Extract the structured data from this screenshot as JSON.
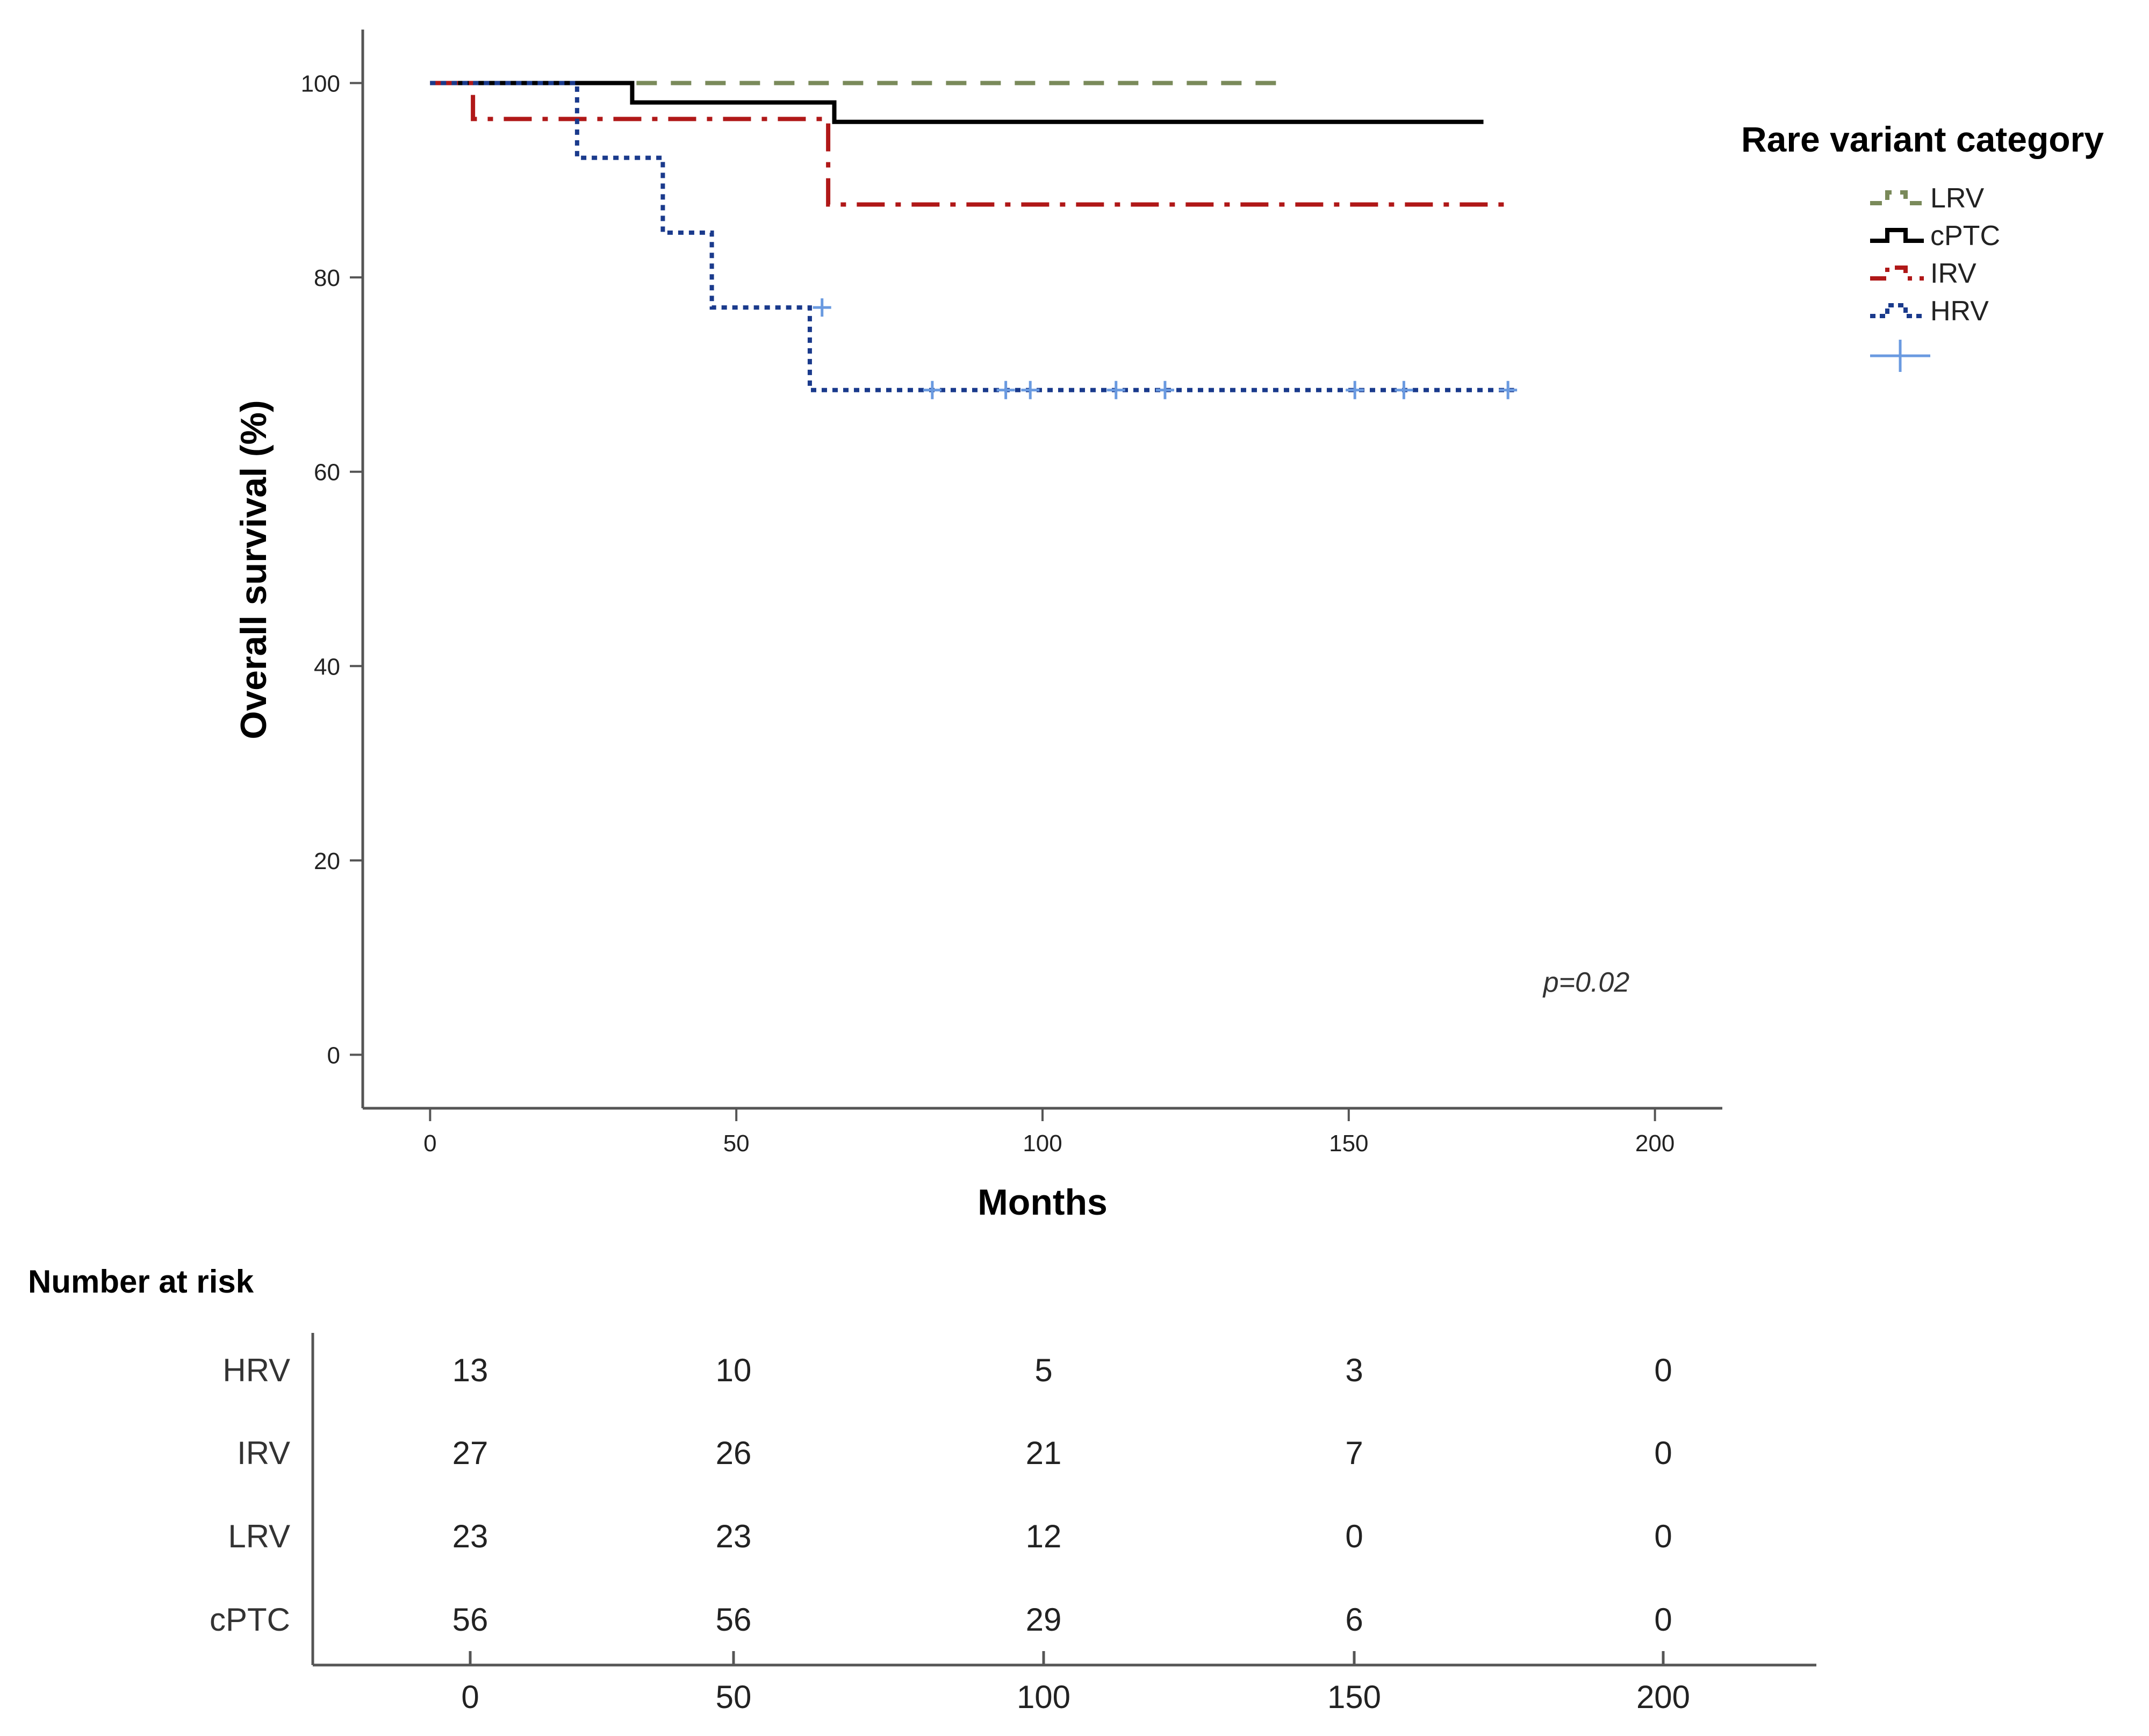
{
  "colors": {
    "axis": "#555555",
    "tick_text": "#222222",
    "LRV": "#7a8a5a",
    "cPTC": "#000000",
    "IRV": "#b01818",
    "HRV": "#1a3a8c",
    "censor": "#6a9ae0"
  },
  "chart_data": [
    {
      "type": "line",
      "subtype": "kaplan-meier",
      "title": "",
      "xlabel": "Months",
      "ylabel": "Overall survival (%)",
      "xlim": [
        -11,
        211
      ],
      "ylim": [
        -5.5,
        105.5
      ],
      "xticks": [
        0,
        50,
        100,
        150,
        200
      ],
      "yticks": [
        0,
        20,
        40,
        60,
        80,
        100
      ],
      "grid": false,
      "legend": {
        "title": "Rare variant category",
        "placement": "right",
        "entries": [
          "LRV",
          "cPTC",
          "IRV",
          "HRV"
        ],
        "censor_symbol": "+"
      },
      "annotation": "p=0.02",
      "series": [
        {
          "name": "LRV",
          "style": "dashed",
          "steps": [
            [
              0,
              100
            ],
            [
              140,
              100
            ]
          ],
          "censored": []
        },
        {
          "name": "cPTC",
          "style": "solid",
          "steps": [
            [
              0,
              100
            ],
            [
              33,
              98
            ],
            [
              66,
              96
            ],
            [
              172,
              96
            ]
          ],
          "censored": []
        },
        {
          "name": "IRV",
          "style": "dashdot",
          "steps": [
            [
              0,
              100
            ],
            [
              7,
              96.3
            ],
            [
              65,
              87.5
            ],
            [
              177,
              87.5
            ]
          ],
          "censored": []
        },
        {
          "name": "HRV",
          "style": "dotted",
          "steps": [
            [
              0,
              100
            ],
            [
              24,
              92.3
            ],
            [
              38,
              84.6
            ],
            [
              46,
              76.9
            ],
            [
              62,
              68.4
            ],
            [
              177,
              68.4
            ]
          ],
          "censored": [
            [
              64,
              76.9
            ],
            [
              82,
              68.4
            ],
            [
              94,
              68.4
            ],
            [
              98,
              68.4
            ],
            [
              112,
              68.4
            ],
            [
              120,
              68.4
            ],
            [
              151,
              68.4
            ],
            [
              159,
              68.4
            ],
            [
              176,
              68.4
            ]
          ]
        }
      ]
    },
    {
      "type": "table",
      "title": "Number at risk",
      "columns": [
        0,
        50,
        100,
        150,
        200
      ],
      "rows": [
        {
          "name": "HRV",
          "values": [
            13,
            10,
            5,
            3,
            0
          ]
        },
        {
          "name": "IRV",
          "values": [
            27,
            26,
            21,
            7,
            0
          ]
        },
        {
          "name": "LRV",
          "values": [
            23,
            23,
            12,
            0,
            0
          ]
        },
        {
          "name": "cPTC",
          "values": [
            56,
            56,
            29,
            6,
            0
          ]
        }
      ]
    }
  ]
}
